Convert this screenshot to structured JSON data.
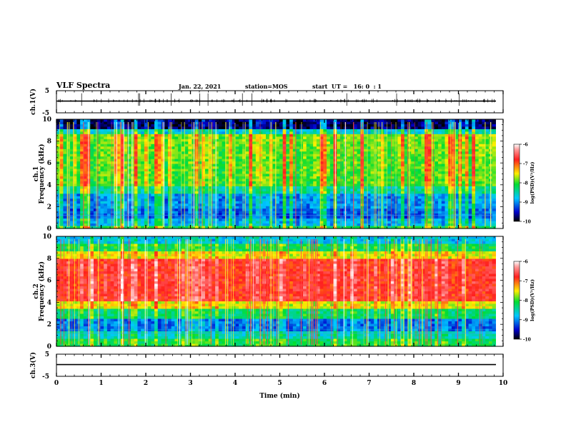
{
  "header": {
    "title": "VLF Spectra",
    "date": "Jan. 22, 2021",
    "station": "station=MOS",
    "start": "start  UT =   16: 0  : 1"
  },
  "chart_data": [
    {
      "type": "line",
      "name": "ch1-waveform",
      "ylabel": "ch.1(V)",
      "ylim": [
        -5,
        5
      ],
      "yticks": [
        "5",
        "-5"
      ],
      "xlim": [
        0,
        10
      ]
    },
    {
      "type": "heatmap",
      "name": "ch1-spectrogram",
      "ylabel_top": "ch.1",
      "ylabel": "Frequency (kHz)",
      "ylim": [
        0,
        10
      ],
      "yticks": [
        "0",
        "2",
        "4",
        "6",
        "8",
        "10"
      ],
      "xlim": [
        0,
        9.83
      ],
      "colorbar": {
        "label": "log(PSD)(V²/Hz)",
        "range": [
          -10,
          -6
        ],
        "ticks": [
          "-6",
          "-7",
          "-8",
          "-9",
          "-10"
        ]
      }
    },
    {
      "type": "heatmap",
      "name": "ch2-spectrogram",
      "ylabel_top": "ch.2",
      "ylabel": "Frequency (kHz)",
      "ylim": [
        0,
        10
      ],
      "yticks": [
        "0",
        "2",
        "4",
        "6",
        "8",
        "10"
      ],
      "xlim": [
        0,
        9.83
      ],
      "colorbar": {
        "label": "log(PSD)(V²/Hz)",
        "range": [
          -10,
          -6
        ],
        "ticks": [
          "-6",
          "-7",
          "-8",
          "-9",
          "-10"
        ]
      }
    },
    {
      "type": "line",
      "name": "ch3-waveform",
      "ylabel": "ch.3(V)",
      "ylim": [
        -5,
        5
      ],
      "yticks": [
        "5",
        "-5"
      ],
      "xlim": [
        0,
        10
      ],
      "xlabel": "Time (min)",
      "xticks": [
        "0",
        "1",
        "2",
        "3",
        "4",
        "5",
        "6",
        "7",
        "8",
        "9",
        "10"
      ]
    }
  ]
}
